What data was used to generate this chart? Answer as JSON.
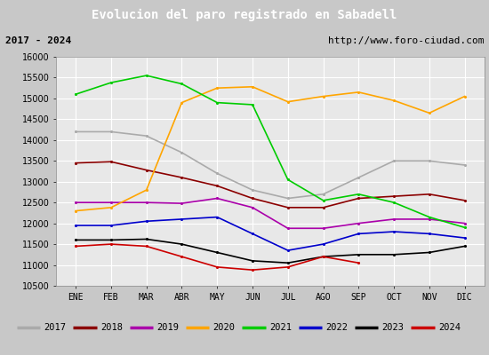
{
  "title": "Evolucion del paro registrado en Sabadell",
  "subtitle_left": "2017 - 2024",
  "subtitle_right": "http://www.foro-ciudad.com",
  "months": [
    "ENE",
    "FEB",
    "MAR",
    "ABR",
    "MAY",
    "JUN",
    "JUL",
    "AGO",
    "SEP",
    "OCT",
    "NOV",
    "DIC"
  ],
  "ylim": [
    10500,
    16000
  ],
  "yticks": [
    10500,
    11000,
    11500,
    12000,
    12500,
    13000,
    13500,
    14000,
    14500,
    15000,
    15500,
    16000
  ],
  "series": {
    "2017": {
      "color": "#aaaaaa",
      "data": [
        14200,
        14200,
        14100,
        13700,
        13200,
        12800,
        12600,
        12700,
        13100,
        13500,
        13500,
        13400
      ]
    },
    "2018": {
      "color": "#8b0000",
      "data": [
        13450,
        13480,
        13280,
        13100,
        12900,
        12600,
        12380,
        12380,
        12600,
        12650,
        12700,
        12550
      ]
    },
    "2019": {
      "color": "#aa00aa",
      "data": [
        12500,
        12500,
        12500,
        12480,
        12600,
        12380,
        11880,
        11880,
        12000,
        12100,
        12100,
        12000
      ]
    },
    "2020": {
      "color": "#ffa500",
      "data": [
        12300,
        12380,
        12800,
        14900,
        15250,
        15280,
        14920,
        15050,
        15150,
        14950,
        14650,
        15050
      ]
    },
    "2021": {
      "color": "#00cc00",
      "data": [
        15100,
        15380,
        15550,
        15350,
        14900,
        14850,
        13050,
        12550,
        12700,
        12500,
        12150,
        11900
      ]
    },
    "2022": {
      "color": "#0000cc",
      "data": [
        11950,
        11950,
        12050,
        12100,
        12150,
        11750,
        11350,
        11500,
        11750,
        11800,
        11750,
        11650
      ]
    },
    "2023": {
      "color": "#000000",
      "data": [
        11600,
        11600,
        11620,
        11500,
        11300,
        11100,
        11050,
        11200,
        11250,
        11250,
        11300,
        11450
      ]
    },
    "2024": {
      "color": "#cc0000",
      "data": [
        11450,
        11500,
        11450,
        11200,
        10950,
        10880,
        10950,
        11200,
        11050,
        null,
        null,
        null
      ]
    }
  },
  "title_bg": "#4472c4",
  "title_color": "#ffffff",
  "subtitle_bg": "#e0e0e0",
  "plot_bg": "#e8e8e8",
  "grid_color": "#ffffff",
  "legend_bg": "#d0d0d0",
  "fig_bg": "#c8c8c8"
}
